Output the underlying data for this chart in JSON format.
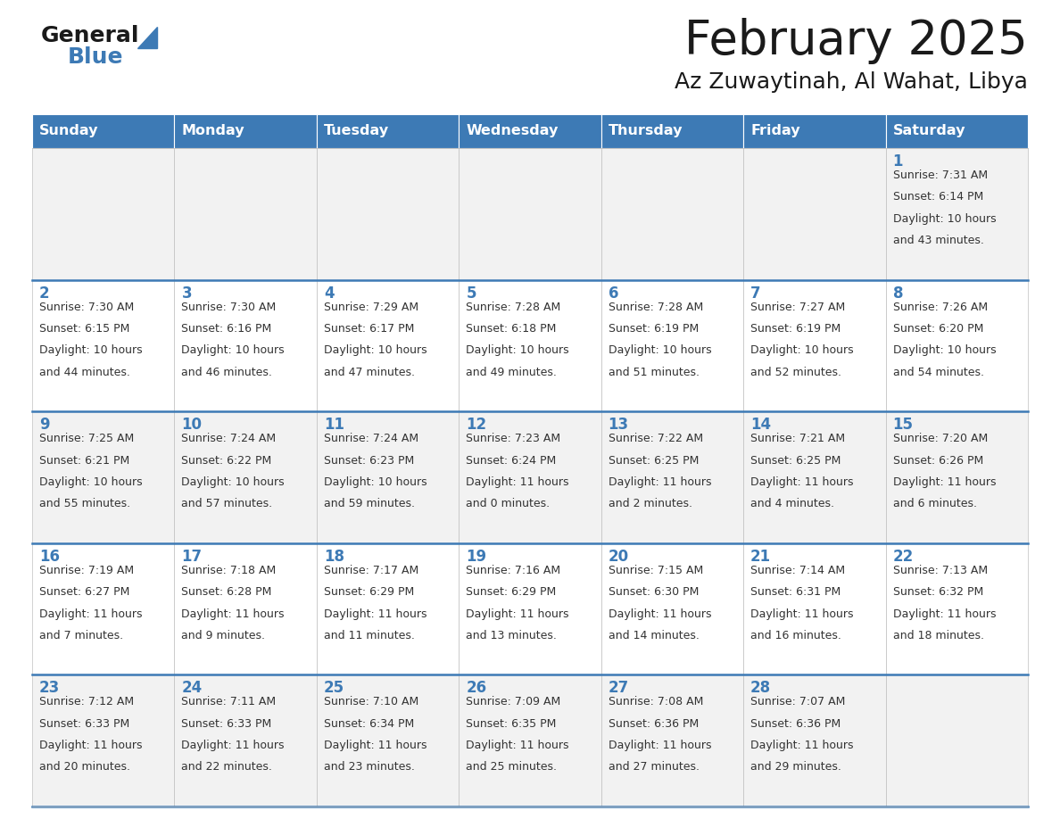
{
  "title": "February 2025",
  "subtitle": "Az Zuwaytinah, Al Wahat, Libya",
  "header_color": "#3d7ab5",
  "header_text_color": "#FFFFFF",
  "weekdays": [
    "Sunday",
    "Monday",
    "Tuesday",
    "Wednesday",
    "Thursday",
    "Friday",
    "Saturday"
  ],
  "row_colors": [
    "#F2F2F2",
    "#FFFFFF"
  ],
  "title_color": "#1a1a1a",
  "subtitle_color": "#1a1a1a",
  "day_num_color": "#3d7ab5",
  "cell_text_color": "#333333",
  "separator_color": "#3d7ab5",
  "cell_border_color": "#c0c0c0",
  "calendar": [
    [
      null,
      null,
      null,
      null,
      null,
      null,
      {
        "day": 1,
        "sunrise": "7:31 AM",
        "sunset": "6:14 PM",
        "daylight_line1": "Daylight: 10 hours",
        "daylight_line2": "and 43 minutes."
      }
    ],
    [
      {
        "day": 2,
        "sunrise": "7:30 AM",
        "sunset": "6:15 PM",
        "daylight_line1": "Daylight: 10 hours",
        "daylight_line2": "and 44 minutes."
      },
      {
        "day": 3,
        "sunrise": "7:30 AM",
        "sunset": "6:16 PM",
        "daylight_line1": "Daylight: 10 hours",
        "daylight_line2": "and 46 minutes."
      },
      {
        "day": 4,
        "sunrise": "7:29 AM",
        "sunset": "6:17 PM",
        "daylight_line1": "Daylight: 10 hours",
        "daylight_line2": "and 47 minutes."
      },
      {
        "day": 5,
        "sunrise": "7:28 AM",
        "sunset": "6:18 PM",
        "daylight_line1": "Daylight: 10 hours",
        "daylight_line2": "and 49 minutes."
      },
      {
        "day": 6,
        "sunrise": "7:28 AM",
        "sunset": "6:19 PM",
        "daylight_line1": "Daylight: 10 hours",
        "daylight_line2": "and 51 minutes."
      },
      {
        "day": 7,
        "sunrise": "7:27 AM",
        "sunset": "6:19 PM",
        "daylight_line1": "Daylight: 10 hours",
        "daylight_line2": "and 52 minutes."
      },
      {
        "day": 8,
        "sunrise": "7:26 AM",
        "sunset": "6:20 PM",
        "daylight_line1": "Daylight: 10 hours",
        "daylight_line2": "and 54 minutes."
      }
    ],
    [
      {
        "day": 9,
        "sunrise": "7:25 AM",
        "sunset": "6:21 PM",
        "daylight_line1": "Daylight: 10 hours",
        "daylight_line2": "and 55 minutes."
      },
      {
        "day": 10,
        "sunrise": "7:24 AM",
        "sunset": "6:22 PM",
        "daylight_line1": "Daylight: 10 hours",
        "daylight_line2": "and 57 minutes."
      },
      {
        "day": 11,
        "sunrise": "7:24 AM",
        "sunset": "6:23 PM",
        "daylight_line1": "Daylight: 10 hours",
        "daylight_line2": "and 59 minutes."
      },
      {
        "day": 12,
        "sunrise": "7:23 AM",
        "sunset": "6:24 PM",
        "daylight_line1": "Daylight: 11 hours",
        "daylight_line2": "and 0 minutes."
      },
      {
        "day": 13,
        "sunrise": "7:22 AM",
        "sunset": "6:25 PM",
        "daylight_line1": "Daylight: 11 hours",
        "daylight_line2": "and 2 minutes."
      },
      {
        "day": 14,
        "sunrise": "7:21 AM",
        "sunset": "6:25 PM",
        "daylight_line1": "Daylight: 11 hours",
        "daylight_line2": "and 4 minutes."
      },
      {
        "day": 15,
        "sunrise": "7:20 AM",
        "sunset": "6:26 PM",
        "daylight_line1": "Daylight: 11 hours",
        "daylight_line2": "and 6 minutes."
      }
    ],
    [
      {
        "day": 16,
        "sunrise": "7:19 AM",
        "sunset": "6:27 PM",
        "daylight_line1": "Daylight: 11 hours",
        "daylight_line2": "and 7 minutes."
      },
      {
        "day": 17,
        "sunrise": "7:18 AM",
        "sunset": "6:28 PM",
        "daylight_line1": "Daylight: 11 hours",
        "daylight_line2": "and 9 minutes."
      },
      {
        "day": 18,
        "sunrise": "7:17 AM",
        "sunset": "6:29 PM",
        "daylight_line1": "Daylight: 11 hours",
        "daylight_line2": "and 11 minutes."
      },
      {
        "day": 19,
        "sunrise": "7:16 AM",
        "sunset": "6:29 PM",
        "daylight_line1": "Daylight: 11 hours",
        "daylight_line2": "and 13 minutes."
      },
      {
        "day": 20,
        "sunrise": "7:15 AM",
        "sunset": "6:30 PM",
        "daylight_line1": "Daylight: 11 hours",
        "daylight_line2": "and 14 minutes."
      },
      {
        "day": 21,
        "sunrise": "7:14 AM",
        "sunset": "6:31 PM",
        "daylight_line1": "Daylight: 11 hours",
        "daylight_line2": "and 16 minutes."
      },
      {
        "day": 22,
        "sunrise": "7:13 AM",
        "sunset": "6:32 PM",
        "daylight_line1": "Daylight: 11 hours",
        "daylight_line2": "and 18 minutes."
      }
    ],
    [
      {
        "day": 23,
        "sunrise": "7:12 AM",
        "sunset": "6:33 PM",
        "daylight_line1": "Daylight: 11 hours",
        "daylight_line2": "and 20 minutes."
      },
      {
        "day": 24,
        "sunrise": "7:11 AM",
        "sunset": "6:33 PM",
        "daylight_line1": "Daylight: 11 hours",
        "daylight_line2": "and 22 minutes."
      },
      {
        "day": 25,
        "sunrise": "7:10 AM",
        "sunset": "6:34 PM",
        "daylight_line1": "Daylight: 11 hours",
        "daylight_line2": "and 23 minutes."
      },
      {
        "day": 26,
        "sunrise": "7:09 AM",
        "sunset": "6:35 PM",
        "daylight_line1": "Daylight: 11 hours",
        "daylight_line2": "and 25 minutes."
      },
      {
        "day": 27,
        "sunrise": "7:08 AM",
        "sunset": "6:36 PM",
        "daylight_line1": "Daylight: 11 hours",
        "daylight_line2": "and 27 minutes."
      },
      {
        "day": 28,
        "sunrise": "7:07 AM",
        "sunset": "6:36 PM",
        "daylight_line1": "Daylight: 11 hours",
        "daylight_line2": "and 29 minutes."
      },
      null
    ]
  ],
  "logo_text_general": "General",
  "logo_text_blue": "Blue",
  "logo_color_general": "#1a1a1a",
  "logo_color_blue": "#3d7ab5",
  "logo_triangle_color": "#3d7ab5"
}
